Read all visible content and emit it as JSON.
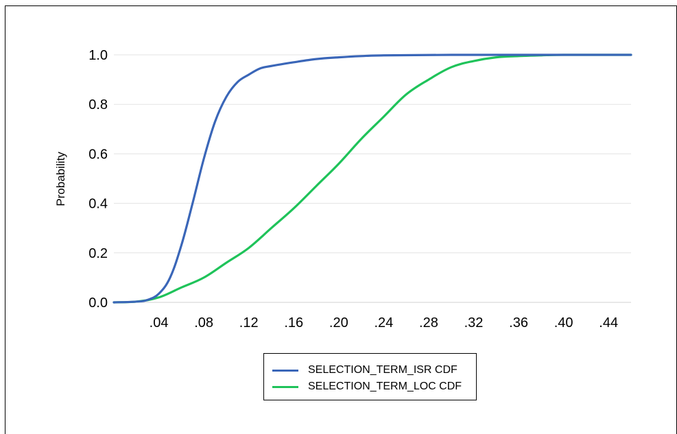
{
  "chart_data": {
    "type": "line",
    "title": "",
    "xlabel": "",
    "ylabel": "Probability",
    "xlim": [
      0.0,
      0.46
    ],
    "ylim": [
      0.0,
      1.0
    ],
    "x_ticks": [
      0.04,
      0.08,
      0.12,
      0.16,
      0.2,
      0.24,
      0.28,
      0.32,
      0.36,
      0.4,
      0.44
    ],
    "x_tick_labels": [
      ".04",
      ".08",
      ".12",
      ".16",
      ".20",
      ".24",
      ".28",
      ".32",
      ".36",
      ".40",
      ".44"
    ],
    "y_ticks": [
      0.0,
      0.2,
      0.4,
      0.6,
      0.8,
      1.0
    ],
    "y_tick_labels": [
      "0.0",
      "0.2",
      "0.4",
      "0.6",
      "0.8",
      "1.0"
    ],
    "grid": "horizontal",
    "legend_position": "bottom",
    "series": [
      {
        "name": "SELECTION_TERM_ISR CDF",
        "color": "#3a66b8",
        "x": [
          0.0,
          0.02,
          0.03,
          0.04,
          0.05,
          0.06,
          0.07,
          0.08,
          0.09,
          0.1,
          0.11,
          0.12,
          0.13,
          0.14,
          0.16,
          0.18,
          0.2,
          0.22,
          0.24,
          0.3,
          0.4,
          0.46
        ],
        "y": [
          0.0,
          0.003,
          0.01,
          0.035,
          0.1,
          0.23,
          0.4,
          0.58,
          0.73,
          0.83,
          0.89,
          0.92,
          0.945,
          0.955,
          0.97,
          0.983,
          0.99,
          0.995,
          0.998,
          1.0,
          1.0,
          1.0
        ]
      },
      {
        "name": "SELECTION_TERM_LOC CDF",
        "color": "#1fc35a",
        "x": [
          0.0,
          0.02,
          0.04,
          0.06,
          0.08,
          0.1,
          0.12,
          0.14,
          0.16,
          0.18,
          0.2,
          0.22,
          0.24,
          0.26,
          0.28,
          0.3,
          0.32,
          0.34,
          0.36,
          0.38,
          0.4,
          0.46
        ],
        "y": [
          0.0,
          0.003,
          0.02,
          0.06,
          0.1,
          0.16,
          0.22,
          0.3,
          0.38,
          0.47,
          0.56,
          0.66,
          0.75,
          0.84,
          0.9,
          0.95,
          0.975,
          0.99,
          0.995,
          0.998,
          1.0,
          1.0
        ]
      }
    ]
  }
}
